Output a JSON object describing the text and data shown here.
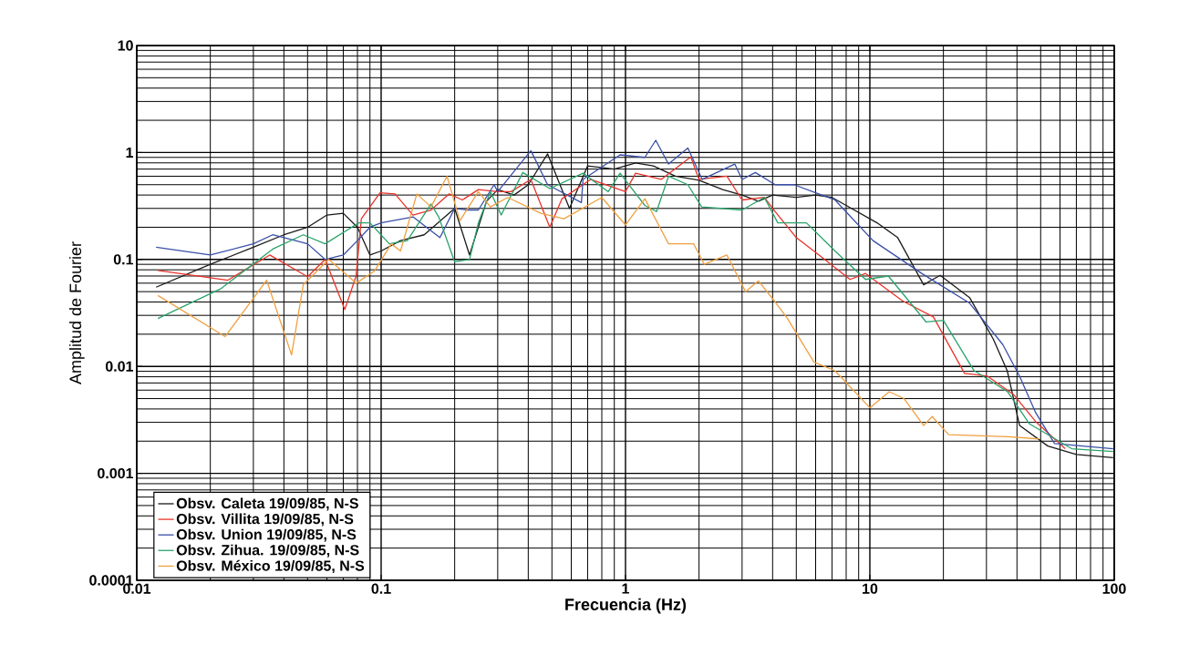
{
  "chart_data": {
    "type": "line",
    "xlabel": "Frecuencia (Hz)",
    "ylabel": "Amplitud de Fourier",
    "log": "xy",
    "grid": true,
    "legend": "bottom left",
    "xlim": [
      0.01,
      100
    ],
    "ylim": [
      0.0001,
      10
    ],
    "xticks": [
      0.01,
      0.1,
      1,
      10,
      100
    ],
    "yticks": [
      0.0001,
      0.001,
      0.01,
      0.1,
      1,
      10
    ],
    "series": [
      {
        "name": "Obsv. Caleta 19/09/85, N-S",
        "color": "#1a1a1a",
        "x": [
          0.012,
          0.02,
          0.03,
          0.04,
          0.05,
          0.06,
          0.07,
          0.08,
          0.09,
          0.1,
          0.12,
          0.15,
          0.2,
          0.23,
          0.27,
          0.3,
          0.35,
          0.4,
          0.48,
          0.59,
          0.7,
          0.9,
          1.1,
          1.3,
          1.6,
          2,
          2.5,
          3,
          3.5,
          4,
          5,
          6,
          7,
          8,
          10.7,
          13,
          16.6,
          19.4,
          25.6,
          32,
          36.5,
          41,
          53.5,
          70,
          99
        ],
        "values": [
          0.055,
          0.09,
          0.13,
          0.17,
          0.2,
          0.26,
          0.27,
          0.2,
          0.11,
          0.12,
          0.15,
          0.17,
          0.3,
          0.11,
          0.35,
          0.45,
          0.4,
          0.5,
          0.97,
          0.3,
          0.75,
          0.7,
          0.8,
          0.75,
          0.6,
          0.55,
          0.45,
          0.4,
          0.35,
          0.4,
          0.38,
          0.4,
          0.38,
          0.32,
          0.22,
          0.16,
          0.058,
          0.071,
          0.044,
          0.018,
          0.0091,
          0.0028,
          0.0018,
          0.0015,
          0.0014
        ]
      },
      {
        "name": "Obsv. Villita 19/09/85, N-S",
        "color": "#e8332a",
        "x": [
          0.0122,
          0.0236,
          0.035,
          0.05,
          0.059,
          0.071,
          0.079,
          0.083,
          0.099,
          0.114,
          0.135,
          0.16,
          0.19,
          0.215,
          0.25,
          0.3,
          0.34,
          0.41,
          0.49,
          0.55,
          0.72,
          1.0,
          1.1,
          1.4,
          1.85,
          2.0,
          2.6,
          3.0,
          3.7,
          4.1,
          5.0,
          6.2,
          8.3,
          9.6,
          13.6,
          18.2,
          24.4,
          30.3,
          38.6,
          48,
          63
        ],
        "values": [
          0.079,
          0.064,
          0.11,
          0.069,
          0.1,
          0.034,
          0.07,
          0.24,
          0.42,
          0.41,
          0.26,
          0.29,
          0.41,
          0.36,
          0.45,
          0.43,
          0.43,
          0.56,
          0.2,
          0.37,
          0.56,
          0.43,
          0.64,
          0.56,
          0.91,
          0.56,
          0.6,
          0.36,
          0.38,
          0.28,
          0.16,
          0.11,
          0.065,
          0.074,
          0.041,
          0.029,
          0.0086,
          0.0081,
          0.0055,
          0.003,
          0.0017
        ]
      },
      {
        "name": "Obsv. Union 19/09/85, N-S",
        "color": "#3a4fa8",
        "x": [
          0.012,
          0.02,
          0.03,
          0.036,
          0.05,
          0.059,
          0.07,
          0.08,
          0.09,
          0.1,
          0.135,
          0.174,
          0.2,
          0.225,
          0.25,
          0.29,
          0.3,
          0.41,
          0.48,
          0.66,
          0.67,
          0.95,
          1.2,
          1.33,
          1.5,
          1.8,
          2.06,
          2.8,
          3.0,
          3.4,
          4.1,
          4.9,
          6.0,
          7.2,
          10.3,
          16.3,
          25.6,
          35,
          41,
          47.7,
          57,
          99
        ],
        "values": [
          0.13,
          0.11,
          0.14,
          0.17,
          0.14,
          0.1,
          0.11,
          0.15,
          0.2,
          0.22,
          0.25,
          0.16,
          0.3,
          0.29,
          0.29,
          0.5,
          0.43,
          1.04,
          0.5,
          0.34,
          0.56,
          0.95,
          0.9,
          1.3,
          0.78,
          1.1,
          0.56,
          0.78,
          0.56,
          0.65,
          0.5,
          0.5,
          0.42,
          0.36,
          0.15,
          0.074,
          0.039,
          0.016,
          0.0081,
          0.0037,
          0.0019,
          0.0017
        ]
      },
      {
        "name": "Obsv. Zihua. 19/09/85, N-S",
        "color": "#2aa36b",
        "x": [
          0.0122,
          0.022,
          0.036,
          0.048,
          0.059,
          0.081,
          0.09,
          0.108,
          0.128,
          0.16,
          0.172,
          0.2,
          0.23,
          0.25,
          0.28,
          0.31,
          0.38,
          0.49,
          0.67,
          0.85,
          0.95,
          1.2,
          1.34,
          1.5,
          1.8,
          2.05,
          3.0,
          3.7,
          4.2,
          5.5,
          7.2,
          9.6,
          11.9,
          17,
          20,
          26.6,
          36.6,
          45,
          67,
          99
        ],
        "values": [
          0.028,
          0.053,
          0.125,
          0.17,
          0.14,
          0.22,
          0.22,
          0.14,
          0.15,
          0.33,
          0.25,
          0.095,
          0.1,
          0.22,
          0.43,
          0.26,
          0.65,
          0.46,
          0.64,
          0.43,
          0.64,
          0.32,
          0.28,
          0.6,
          0.5,
          0.31,
          0.29,
          0.38,
          0.22,
          0.22,
          0.12,
          0.065,
          0.07,
          0.026,
          0.027,
          0.0092,
          0.0058,
          0.0029,
          0.0017,
          0.0016
        ]
      },
      {
        "name": "Obsv. México 19/09/85, N-S",
        "color": "#f0a040",
        "x": [
          0.0122,
          0.023,
          0.034,
          0.043,
          0.048,
          0.061,
          0.079,
          0.094,
          0.11,
          0.12,
          0.14,
          0.16,
          0.186,
          0.21,
          0.25,
          0.28,
          0.33,
          0.45,
          0.56,
          0.8,
          1.0,
          1.2,
          1.5,
          1.9,
          2.1,
          2.6,
          3.1,
          3.5,
          4.1,
          4.6,
          5.9,
          7.2,
          10,
          12,
          13.8,
          16.6,
          18,
          21,
          36.6,
          49
        ],
        "values": [
          0.046,
          0.019,
          0.064,
          0.0128,
          0.058,
          0.1,
          0.06,
          0.078,
          0.14,
          0.12,
          0.41,
          0.31,
          0.6,
          0.23,
          0.43,
          0.31,
          0.38,
          0.27,
          0.24,
          0.38,
          0.21,
          0.37,
          0.14,
          0.14,
          0.09,
          0.11,
          0.05,
          0.063,
          0.04,
          0.028,
          0.011,
          0.0091,
          0.0041,
          0.0058,
          0.005,
          0.0028,
          0.0034,
          0.0023,
          0.0022,
          0.0021
        ]
      }
    ]
  }
}
